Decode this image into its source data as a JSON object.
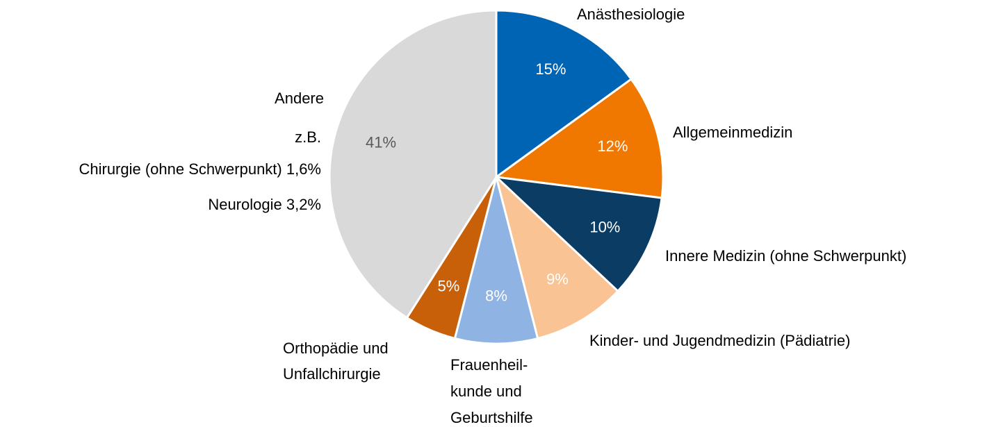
{
  "chart_data": {
    "type": "pie",
    "categories": [
      "Anästhesiologie",
      "Allgemeinmedizin",
      "Innere Medizin (ohne Schwerpunkt)",
      "Kinder- und Jugendmedizin (Pädiatrie)",
      "Frauenheil-\nkunde und\nGeburtshilfe",
      "Orthopädie und\nUnfallchirurgie",
      "Andere"
    ],
    "values": [
      15,
      12,
      10,
      9,
      8,
      5,
      41
    ],
    "value_labels": [
      "15%",
      "12%",
      "10%",
      "9%",
      "8%",
      "5%",
      "41%"
    ],
    "colors": [
      "#0064b4",
      "#f07800",
      "#0a3c64",
      "#f9c394",
      "#8fb4e3",
      "#c8600a",
      "#d9d9d9"
    ],
    "label_colors": [
      "#ffffff",
      "#ffffff",
      "#ffffff",
      "#ffffff",
      "#ffffff",
      "#ffffff",
      "#595959"
    ],
    "annotations": [
      "z.B.",
      "Chirurgie (ohne Schwerpunkt) 1,6%",
      "Neurologie 3,2%"
    ]
  }
}
